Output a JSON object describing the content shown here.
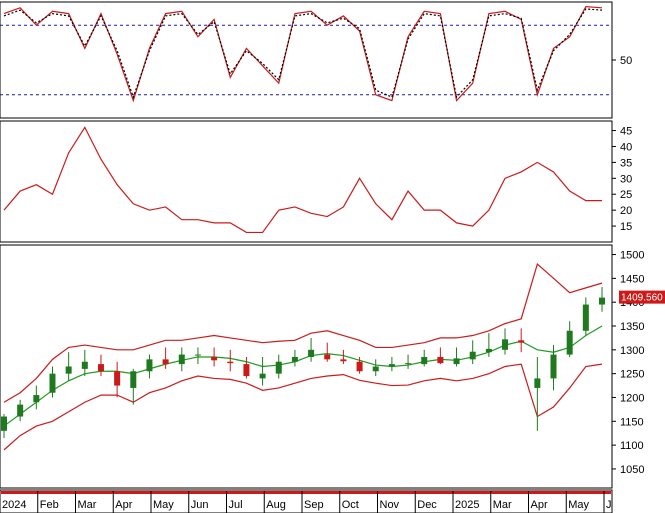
{
  "colors": {
    "up_candle": "#1f7a1f",
    "down_candle": "#cc1a1a",
    "band": "#cc1a1a",
    "ma": "#1f9a1f",
    "stoch_k": "#cc1a1a",
    "stoch_d": "#000000",
    "ref_line": "#1a1aa6",
    "adx": "#cc1a1a",
    "price_tag_bg": "#cc1a1a",
    "price_tag_text": "#ffffff"
  },
  "chart_data": [
    {
      "type": "line",
      "panel": "stochastic",
      "yticks": [
        50
      ],
      "ylim": [
        0,
        100
      ],
      "ref_lines": [
        80,
        20
      ],
      "x": [
        "2024-01-02",
        "2024-01-16",
        "2024-01-30",
        "2024-02-13",
        "2024-02-27",
        "2024-03-12",
        "2024-03-26",
        "2024-04-09",
        "2024-04-23",
        "2024-05-07",
        "2024-05-21",
        "2024-06-04",
        "2024-06-18",
        "2024-07-02",
        "2024-07-16",
        "2024-07-30",
        "2024-08-13",
        "2024-08-27",
        "2024-09-10",
        "2024-09-24",
        "2024-10-08",
        "2024-10-22",
        "2024-11-05",
        "2024-11-19",
        "2024-12-03",
        "2024-12-17",
        "2024-12-31",
        "2025-01-14",
        "2025-01-28",
        "2025-02-11",
        "2025-02-25",
        "2025-03-11",
        "2025-03-25",
        "2025-04-08",
        "2025-04-22",
        "2025-05-06",
        "2025-05-20",
        "2025-05-28"
      ],
      "series": [
        {
          "values": [
            90,
            95,
            80,
            92,
            90,
            60,
            90,
            55,
            15,
            60,
            90,
            92,
            70,
            85,
            35,
            60,
            45,
            30,
            90,
            92,
            80,
            88,
            75,
            20,
            15,
            70,
            92,
            90,
            15,
            30,
            90,
            92,
            85,
            20,
            60,
            70,
            96,
            95
          ]
        },
        {
          "values": [
            88,
            93,
            82,
            90,
            88,
            62,
            88,
            58,
            18,
            58,
            88,
            90,
            72,
            83,
            38,
            58,
            47,
            33,
            88,
            90,
            82,
            86,
            77,
            24,
            18,
            68,
            90,
            88,
            18,
            33,
            88,
            90,
            86,
            24,
            58,
            72,
            94,
            93
          ]
        }
      ]
    },
    {
      "type": "line",
      "panel": "adx",
      "yticks": [
        15,
        20,
        25,
        30,
        35,
        40,
        45
      ],
      "ylim": [
        10,
        48
      ],
      "x": [
        "2024-01-02",
        "2024-01-16",
        "2024-01-30",
        "2024-02-13",
        "2024-02-27",
        "2024-03-12",
        "2024-03-26",
        "2024-04-09",
        "2024-04-23",
        "2024-05-07",
        "2024-05-21",
        "2024-06-04",
        "2024-06-18",
        "2024-07-02",
        "2024-07-16",
        "2024-07-30",
        "2024-08-13",
        "2024-08-27",
        "2024-09-10",
        "2024-09-24",
        "2024-10-08",
        "2024-10-22",
        "2024-11-05",
        "2024-11-19",
        "2024-12-03",
        "2024-12-17",
        "2024-12-31",
        "2025-01-14",
        "2025-01-28",
        "2025-02-11",
        "2025-02-25",
        "2025-03-11",
        "2025-03-25",
        "2025-04-08",
        "2025-04-22",
        "2025-05-06",
        "2025-05-20",
        "2025-05-28"
      ],
      "series": [
        {
          "values": [
            20,
            26,
            28,
            25,
            38,
            46,
            36,
            28,
            22,
            20,
            21,
            17,
            17,
            16,
            16,
            13,
            13,
            20,
            21,
            19,
            18,
            21,
            30,
            22,
            17,
            26,
            20,
            20,
            16,
            15,
            20,
            30,
            32,
            35,
            32,
            26,
            23,
            23
          ]
        }
      ]
    },
    {
      "type": "candlestick",
      "panel": "price",
      "yticks": [
        1050,
        1100,
        1150,
        1200,
        1250,
        1300,
        1350,
        1400,
        1450,
        1500
      ],
      "ylim": [
        1010,
        1520
      ],
      "xticks": [
        "2024",
        "Feb",
        "Mar",
        "Apr",
        "May",
        "Jun",
        "Jul",
        "Aug",
        "Sep",
        "Oct",
        "Nov",
        "Dec",
        "2025",
        "Mar",
        "Apr",
        "May",
        "J"
      ],
      "last_price_label": "1409.560",
      "x": [
        "2024-01-02",
        "2024-01-16",
        "2024-01-30",
        "2024-02-13",
        "2024-02-27",
        "2024-03-12",
        "2024-03-26",
        "2024-04-09",
        "2024-04-23",
        "2024-05-07",
        "2024-05-21",
        "2024-06-04",
        "2024-06-18",
        "2024-07-02",
        "2024-07-16",
        "2024-07-30",
        "2024-08-13",
        "2024-08-27",
        "2024-09-10",
        "2024-09-24",
        "2024-10-08",
        "2024-10-22",
        "2024-11-05",
        "2024-11-19",
        "2024-12-03",
        "2024-12-17",
        "2024-12-31",
        "2025-01-14",
        "2025-01-28",
        "2025-02-11",
        "2025-02-25",
        "2025-03-11",
        "2025-03-25",
        "2025-04-08",
        "2025-04-22",
        "2025-05-06",
        "2025-05-20",
        "2025-05-28"
      ],
      "open": [
        1130,
        1160,
        1190,
        1210,
        1250,
        1260,
        1270,
        1255,
        1220,
        1255,
        1280,
        1270,
        1290,
        1285,
        1275,
        1270,
        1240,
        1250,
        1275,
        1285,
        1290,
        1280,
        1275,
        1255,
        1265,
        1270,
        1270,
        1285,
        1270,
        1280,
        1295,
        1300,
        1320,
        1220,
        1240,
        1290,
        1340,
        1395
      ],
      "high": [
        1165,
        1195,
        1225,
        1265,
        1295,
        1300,
        1290,
        1275,
        1260,
        1290,
        1305,
        1305,
        1305,
        1305,
        1300,
        1285,
        1285,
        1290,
        1300,
        1325,
        1315,
        1300,
        1285,
        1280,
        1285,
        1290,
        1300,
        1305,
        1305,
        1320,
        1335,
        1345,
        1345,
        1285,
        1310,
        1360,
        1410,
        1432
      ],
      "low": [
        1115,
        1150,
        1175,
        1200,
        1235,
        1245,
        1245,
        1200,
        1185,
        1240,
        1260,
        1255,
        1270,
        1265,
        1255,
        1240,
        1225,
        1240,
        1265,
        1275,
        1275,
        1270,
        1250,
        1245,
        1255,
        1260,
        1265,
        1270,
        1265,
        1270,
        1285,
        1290,
        1295,
        1130,
        1215,
        1285,
        1330,
        1380
      ],
      "close": [
        1160,
        1185,
        1205,
        1250,
        1265,
        1275,
        1255,
        1225,
        1255,
        1280,
        1270,
        1290,
        1290,
        1278,
        1272,
        1245,
        1250,
        1275,
        1285,
        1300,
        1280,
        1276,
        1255,
        1265,
        1270,
        1272,
        1285,
        1272,
        1282,
        1296,
        1302,
        1322,
        1315,
        1240,
        1290,
        1340,
        1395,
        1409.56
      ],
      "bb_upper": [
        1190,
        1210,
        1240,
        1280,
        1305,
        1310,
        1305,
        1300,
        1300,
        1310,
        1320,
        1320,
        1325,
        1330,
        1325,
        1320,
        1315,
        1318,
        1320,
        1335,
        1340,
        1330,
        1320,
        1305,
        1305,
        1310,
        1315,
        1325,
        1325,
        1330,
        1340,
        1355,
        1365,
        1480,
        1450,
        1420,
        1430,
        1440
      ],
      "bb_mid": [
        1140,
        1165,
        1190,
        1215,
        1235,
        1250,
        1255,
        1255,
        1250,
        1260,
        1270,
        1278,
        1285,
        1285,
        1282,
        1275,
        1265,
        1268,
        1275,
        1288,
        1292,
        1288,
        1278,
        1268,
        1265,
        1268,
        1275,
        1280,
        1278,
        1285,
        1295,
        1310,
        1318,
        1300,
        1295,
        1305,
        1330,
        1350
      ],
      "bb_lower": [
        1090,
        1120,
        1140,
        1150,
        1170,
        1190,
        1205,
        1205,
        1190,
        1210,
        1220,
        1235,
        1245,
        1240,
        1238,
        1230,
        1215,
        1220,
        1230,
        1240,
        1245,
        1248,
        1236,
        1230,
        1225,
        1226,
        1235,
        1240,
        1235,
        1240,
        1250,
        1265,
        1270,
        1160,
        1180,
        1220,
        1265,
        1270
      ]
    }
  ]
}
